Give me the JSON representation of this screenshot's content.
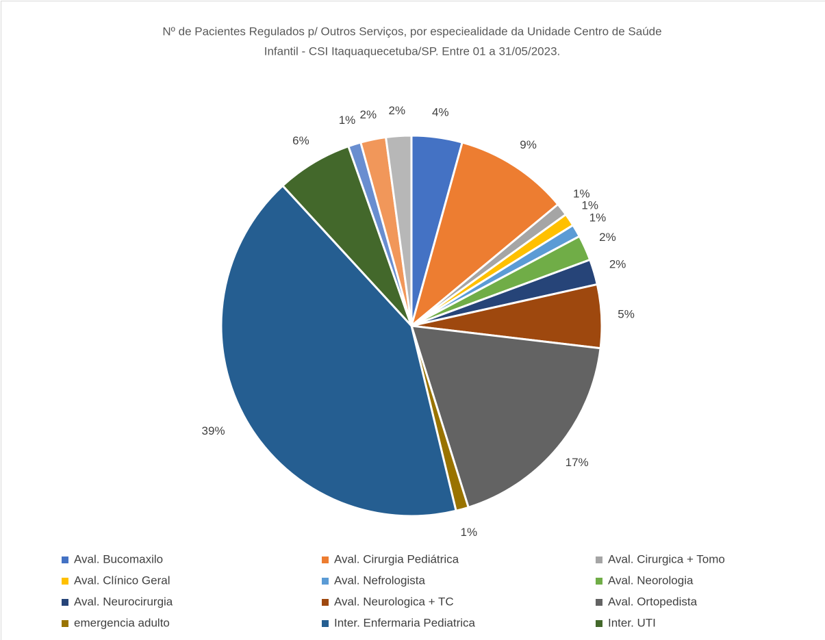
{
  "chart_data": {
    "type": "pie",
    "title": [
      "Nº de Pacientes Regulados p/ Outros Serviços, por especiealidade da Unidade Centro de Saúde",
      "Infantil - CSI Itaquaquecetuba/SP. Entre  01 a 31/05/2023."
    ],
    "categories": [
      "Aval. Bucomaxilo",
      "Aval. Cirurgia Pediátrica",
      "Aval. Cirurgica + Tomo",
      "Aval. Clínico Geral",
      "Aval. Nefrologista",
      "Aval. Neorologia",
      "Aval. Neurocirurgia",
      "Aval. Neurologica + TC",
      "Aval. Ortopedista",
      "emergencia adulto",
      "Inter. Enfermaria Pediatrica",
      "Inter. UTI",
      null,
      null,
      null
    ],
    "values": [
      4,
      9,
      1,
      1,
      1,
      2,
      2,
      5,
      17,
      1,
      39,
      6,
      1,
      2,
      2
    ],
    "value_labels": [
      "4%",
      "9%",
      "1%",
      "1%",
      "1%",
      "2%",
      "2%",
      "5%",
      "17%",
      "1%",
      "39%",
      "6%",
      "1%",
      "2%",
      "2%"
    ],
    "colors": [
      "#4472c4",
      "#ed7d31",
      "#a5a5a5",
      "#ffc000",
      "#5b9bd5",
      "#70ad47",
      "#264478",
      "#9e480e",
      "#636363",
      "#997300",
      "#255e91",
      "#43682b",
      "#698ed0",
      "#f1975a",
      "#b7b7b7"
    ],
    "legend": "bottom"
  }
}
